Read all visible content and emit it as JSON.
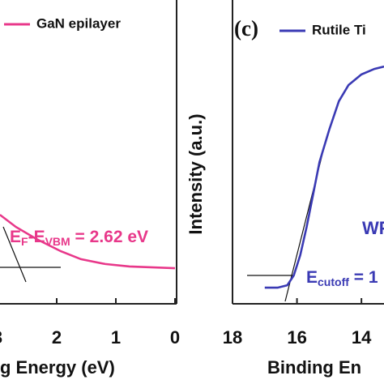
{
  "chart_data": [
    {
      "type": "line",
      "xlim": [
        3,
        0
      ],
      "xticks": [
        3,
        2,
        1,
        0
      ],
      "ylim": [
        0,
        100
      ],
      "xlabel": "g Energy (eV)",
      "annotation": [
        "E",
        "F",
        "-E",
        "VBM",
        " = 2.62 eV"
      ],
      "legend": "top-left",
      "x": [
        2.96,
        2.69,
        2.34,
        1.93,
        1.59,
        1.18,
        0.77,
        0
      ],
      "series": [
        {
          "name": "GaN epilayer",
          "color": "#e8388a",
          "values": [
            29.3,
            25.3,
            21.3,
            17.3,
            14.7,
            13.1,
            12.3,
            11.7
          ]
        }
      ]
    },
    {
      "type": "line",
      "panel_label": "(c)",
      "xlim": [
        18,
        13.3
      ],
      "xticks": [
        18,
        16,
        14
      ],
      "ylim": [
        0,
        100
      ],
      "xlabel": "Binding En",
      "ylabel": "Intensity (a.u.)",
      "annotation": [
        "E",
        "cutoff",
        " = 1"
      ],
      "annotation2": "WF",
      "legend": "top-left",
      "x": [
        17.0,
        16.6,
        16.3,
        16.1,
        15.9,
        15.7,
        15.5,
        15.3,
        15.0,
        14.7,
        14.4,
        14.0,
        13.6,
        13.3
      ],
      "series": [
        {
          "name": "Rutile Ti",
          "color": "#3a3ab4",
          "values": [
            5.3,
            5.3,
            6.1,
            9.3,
            16,
            25.3,
            36,
            46.7,
            57.3,
            66.7,
            72,
            75.5,
            77.3,
            78.1
          ]
        }
      ]
    }
  ]
}
